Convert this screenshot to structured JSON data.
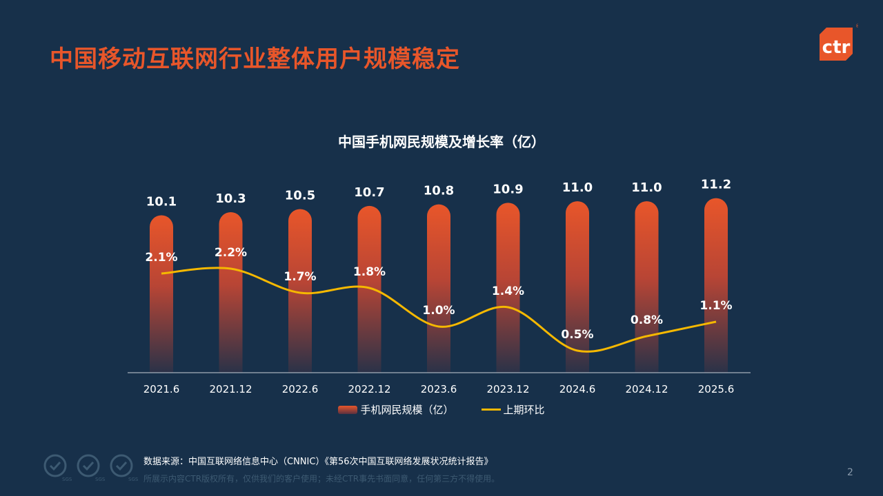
{
  "title": "中国移动互联网行业整体用户规模稳定",
  "logo": {
    "text": "ctr",
    "mark": "®",
    "color": "#e8562a"
  },
  "chart_data": {
    "type": "bar+line",
    "title": "中国手机网民规模及增长率（亿）",
    "categories": [
      "2021.6",
      "2021.12",
      "2022.6",
      "2022.12",
      "2023.6",
      "2023.12",
      "2024.6",
      "2024.12",
      "2025.6"
    ],
    "series": [
      {
        "name": "手机网民规模（亿）",
        "type": "bar",
        "values": [
          10.1,
          10.3,
          10.5,
          10.7,
          10.8,
          10.9,
          11.0,
          11.0,
          11.2
        ],
        "labels": [
          "10.1",
          "10.3",
          "10.5",
          "10.7",
          "10.8",
          "10.9",
          "11.0",
          "11.0",
          "11.2"
        ],
        "color": "#e8562a"
      },
      {
        "name": "上期环比",
        "type": "line",
        "values": [
          2.1,
          2.2,
          1.7,
          1.8,
          1.0,
          1.4,
          0.5,
          0.8,
          1.1
        ],
        "labels": [
          "2.1%",
          "2.2%",
          "1.7%",
          "1.8%",
          "1.0%",
          "1.4%",
          "0.5%",
          "0.8%",
          "1.1%"
        ],
        "color": "#f5b800"
      }
    ],
    "ylim_bar": [
      0,
      12
    ],
    "ylim_line": [
      0,
      3.5
    ],
    "grid": false,
    "legend": "bottom"
  },
  "footer": {
    "source": "数据来源：中国互联网络信息中心（CNNIC）《第56次中国互联网络发展状况统计报告》",
    "copyright": "所展示内容CTR版权所有，仅供我们的客户使用；未经CTR事先书面同意，任何第三方不得使用。",
    "page": "2",
    "badges": [
      "SGS",
      "SGS",
      "SGS"
    ]
  }
}
